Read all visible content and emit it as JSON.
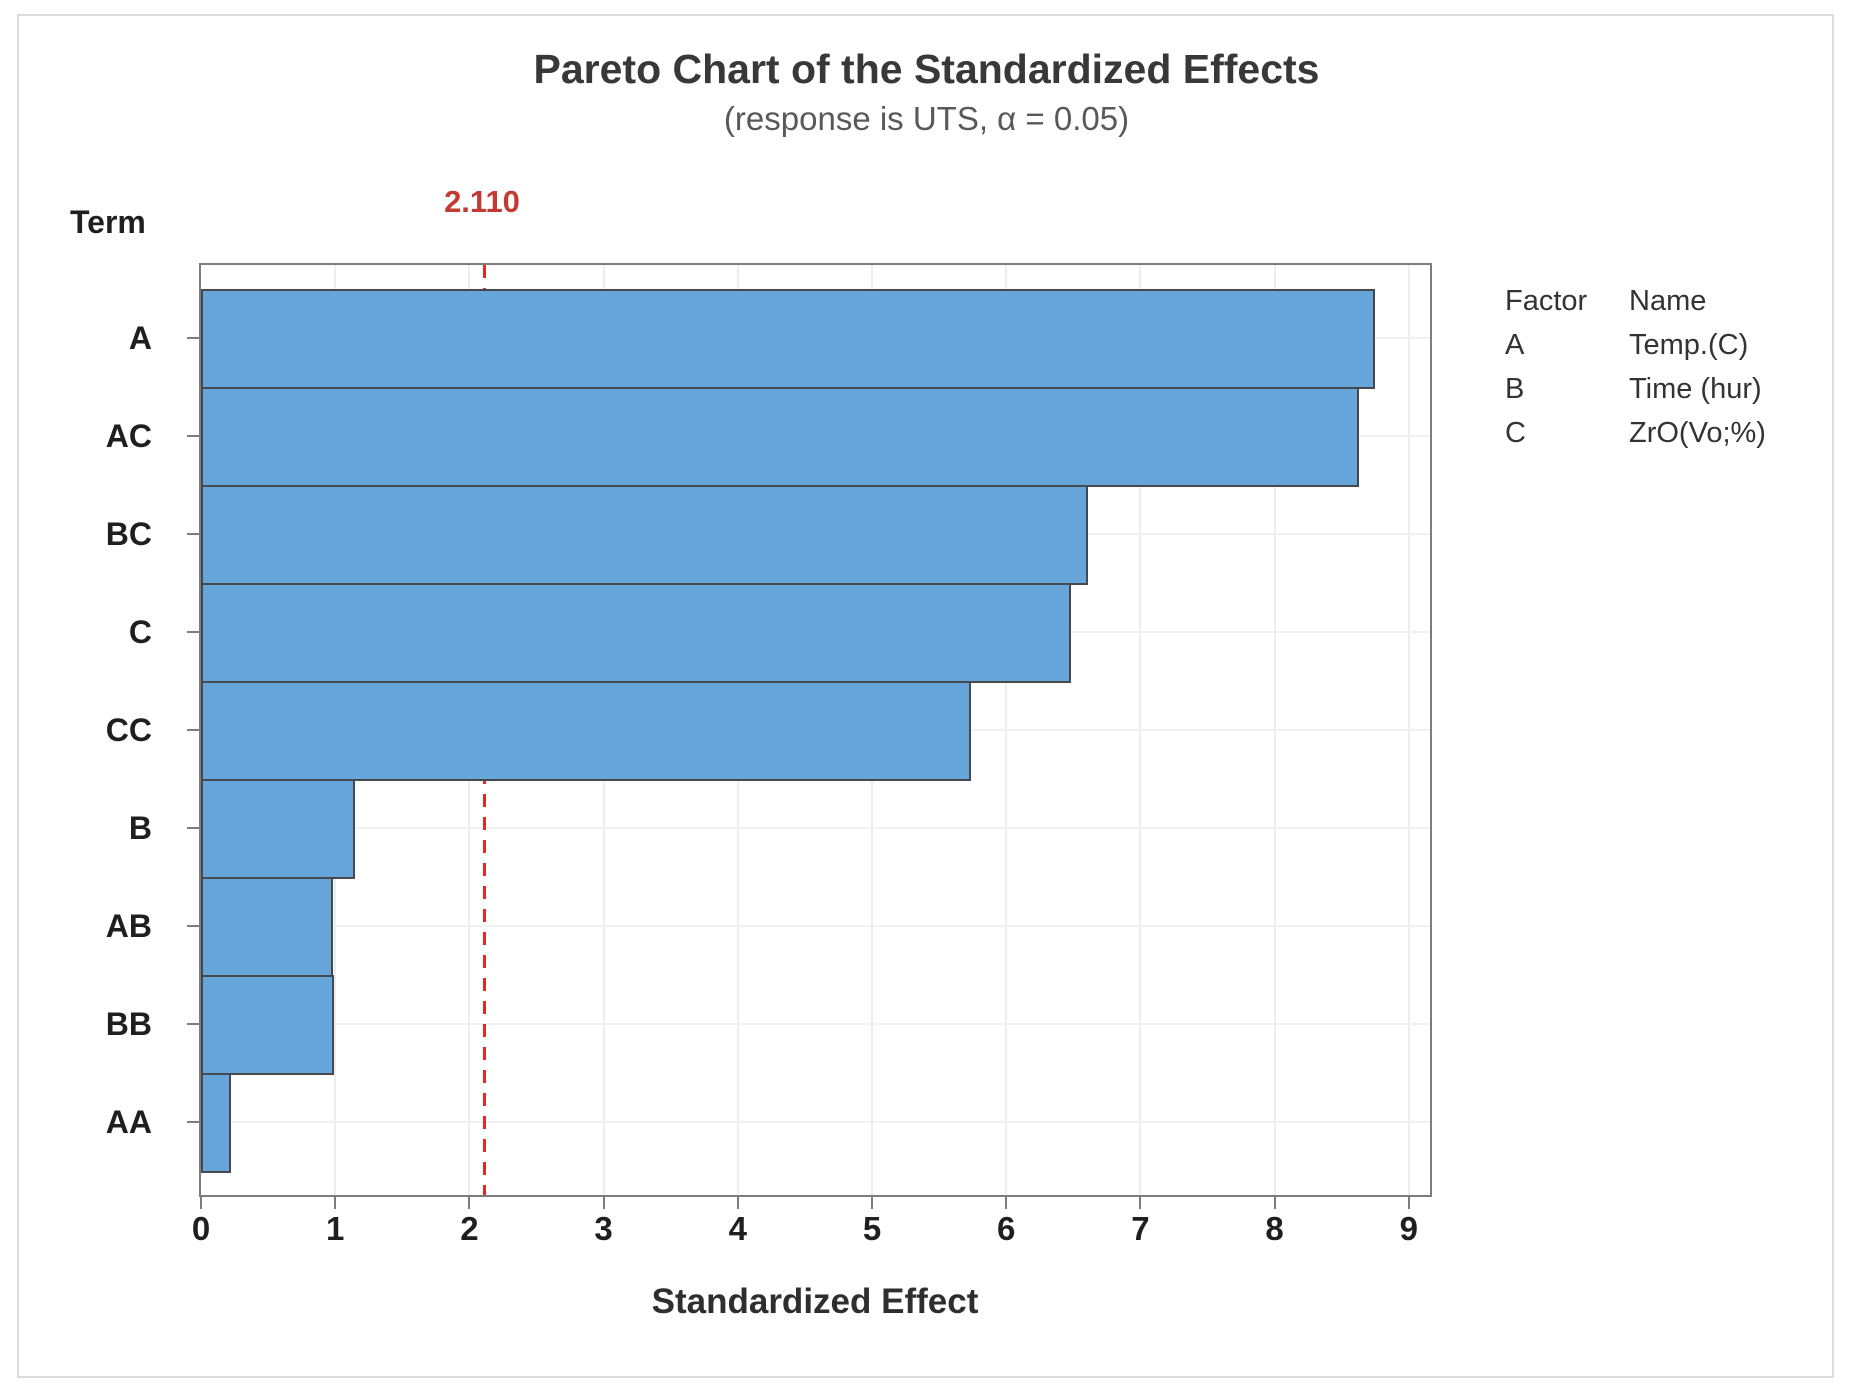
{
  "title": "Pareto Chart of the Standardized Effects",
  "subtitle": "(response is UTS, α = 0.05)",
  "y_axis_title": "Term",
  "x_axis_title": "Standardized Effect",
  "reference_line": {
    "value": 2.11,
    "label": "2.110"
  },
  "colors": {
    "bar_fill": "#67a6db",
    "bar_border": "#45484d",
    "reference_line": "#e8271f",
    "reference_label": "#c23a33",
    "plot_frame": "#7c7c7c",
    "gridline": "#ededed",
    "title_text": "#383838",
    "subtitle_text": "#595959",
    "axis_text": "#1f1f1f"
  },
  "chart_data": {
    "type": "bar",
    "orientation": "horizontal",
    "title": "Pareto Chart of the Standardized Effects",
    "subtitle": "(response is UTS, α = 0.05)",
    "xlabel": "Standardized Effect",
    "ylabel": "Term",
    "categories": [
      "A",
      "AC",
      "BC",
      "C",
      "CC",
      "B",
      "AB",
      "BB",
      "AA"
    ],
    "values": [
      8.75,
      8.63,
      6.61,
      6.48,
      5.74,
      1.15,
      0.98,
      0.99,
      0.22
    ],
    "xlim": [
      0,
      9.16
    ],
    "x_ticks": [
      0,
      1,
      2,
      3,
      4,
      5,
      6,
      7,
      8,
      9
    ],
    "reference_line_value": 2.11,
    "reference_line_label": "2.110",
    "grid": "vertical gridlines at integer ticks, horizontal gridlines at category centers",
    "legend_position": "right"
  },
  "legend": {
    "headers": [
      "Factor",
      "Name"
    ],
    "rows": [
      [
        "A",
        "Temp.(C)"
      ],
      [
        "B",
        "Time (hur)"
      ],
      [
        "C",
        "ZrO(Vo;%)"
      ]
    ]
  }
}
